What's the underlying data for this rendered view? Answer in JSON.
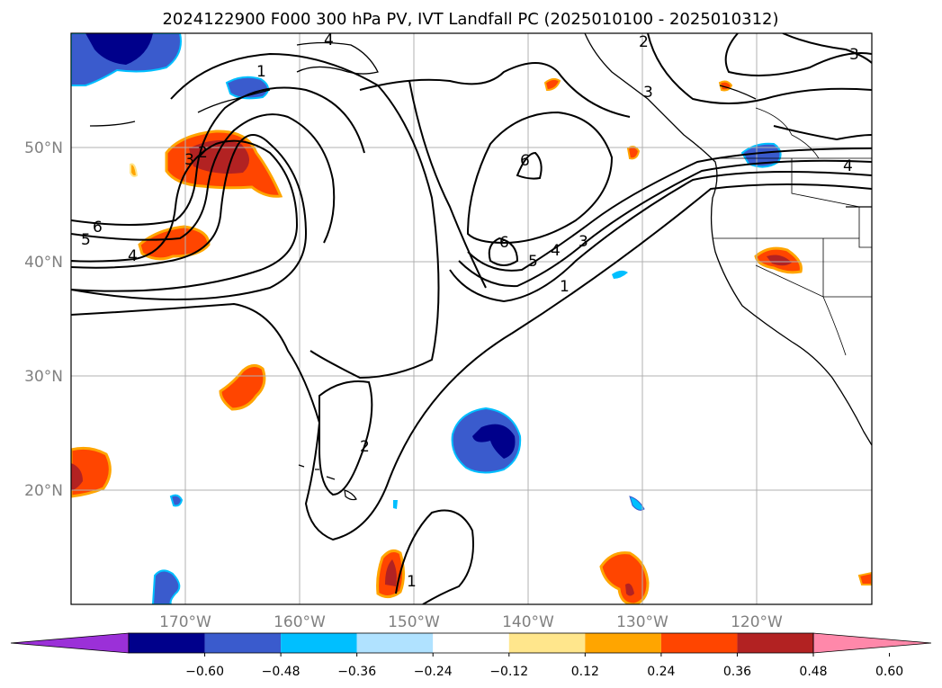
{
  "title": "2024122900 F000 300 hPa PV, IVT Landfall PC (2025010100 - 2025010312)",
  "map": {
    "lon_ticks": [
      "170°W",
      "160°W",
      "150°W",
      "140°W",
      "130°W",
      "120°W"
    ],
    "lat_ticks": [
      "50°N",
      "40°N",
      "30°N",
      "20°N"
    ],
    "extent": {
      "lon": [
        -180,
        -110
      ],
      "lat": [
        10,
        60
      ]
    },
    "gridlines": true,
    "contour_labels": [
      "1",
      "2",
      "3",
      "4",
      "5",
      "6"
    ]
  },
  "colorbar": {
    "ticks": [
      "−0.60",
      "−0.48",
      "−0.36",
      "−0.24",
      "−0.12",
      "0.12",
      "0.24",
      "0.36",
      "0.48",
      "0.60"
    ],
    "colors": [
      "#9b30d8",
      "#00008b",
      "#3a5bcd",
      "#00bfff",
      "#b0e2ff",
      "#ffffff",
      "#ffe68c",
      "#ffa500",
      "#ff4500",
      "#b22222",
      "#ff88aa"
    ],
    "extend": "both"
  }
}
